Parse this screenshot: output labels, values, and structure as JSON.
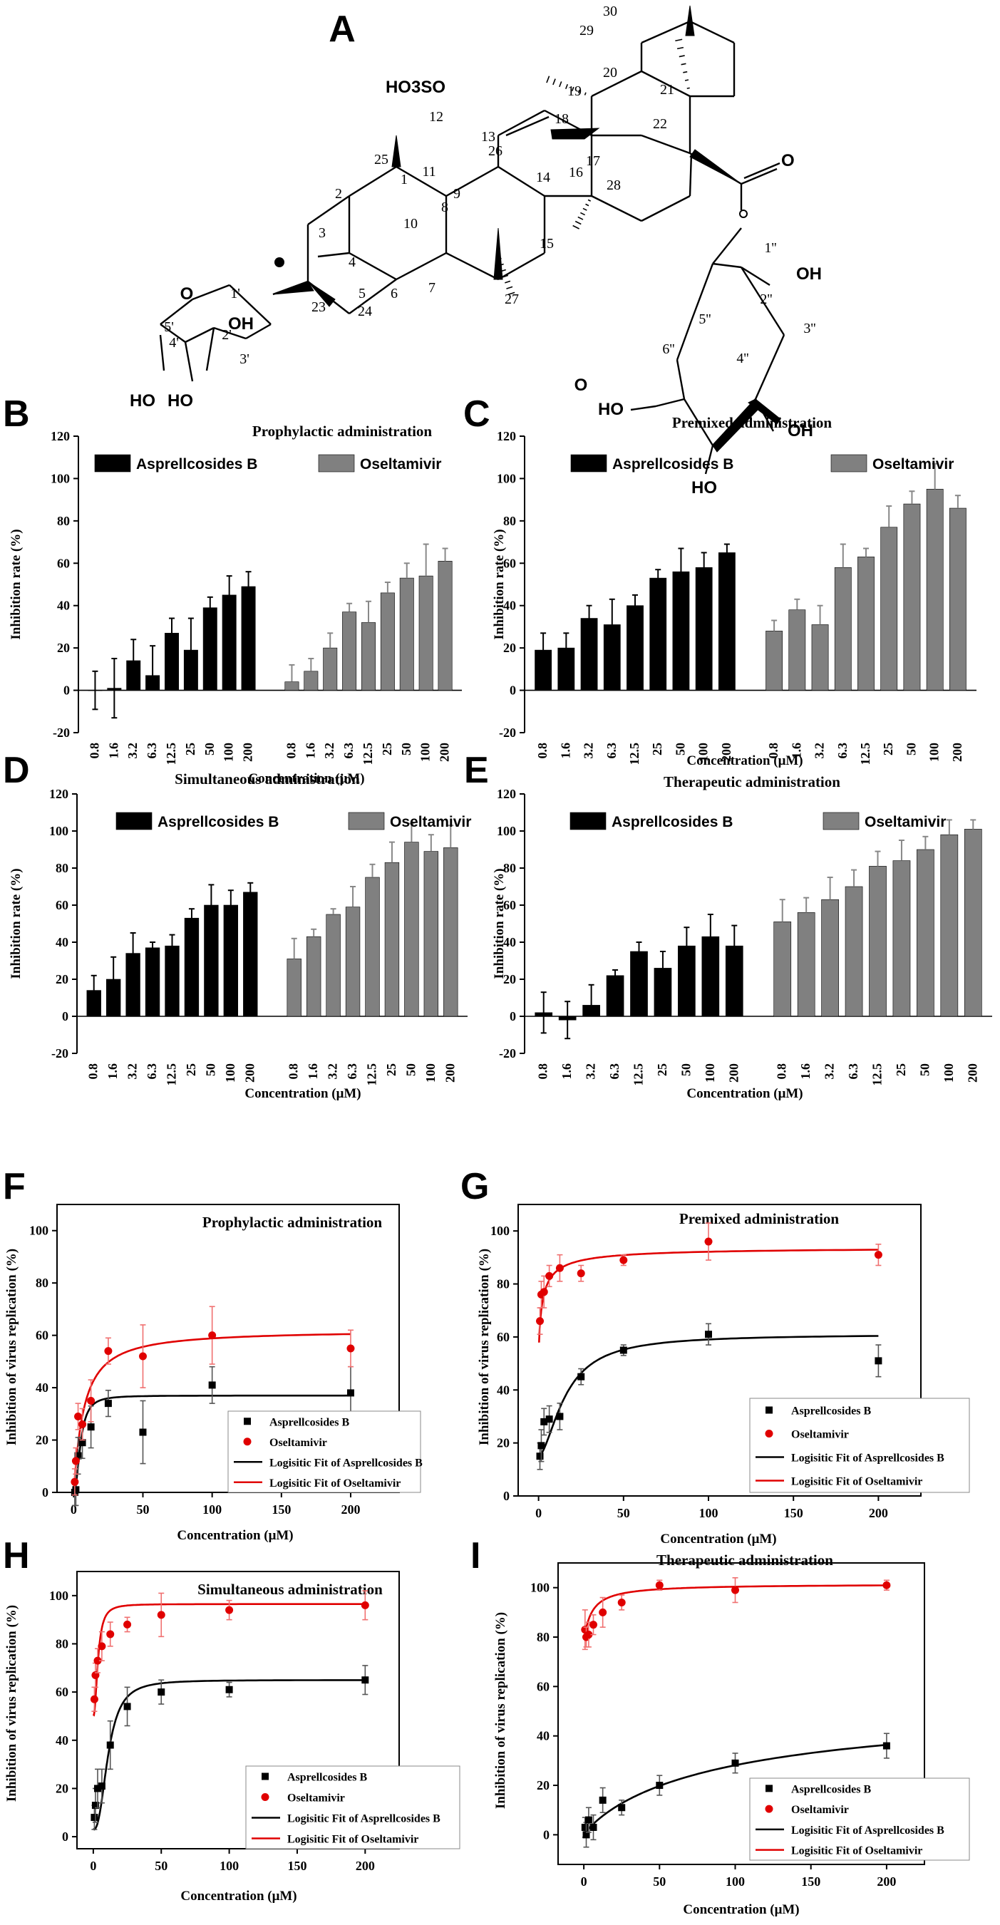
{
  "structure": {
    "panel_label": "A",
    "atoms": {
      "so3": "HO3SO",
      "oh": "OH",
      "ho": "HO",
      "o": "O"
    },
    "numbers": [
      "1",
      "2",
      "3",
      "4",
      "5",
      "6",
      "7",
      "8",
      "9",
      "10",
      "11",
      "12",
      "13",
      "14",
      "15",
      "16",
      "17",
      "18",
      "19",
      "20",
      "21",
      "22",
      "23",
      "24",
      "25",
      "26",
      "27",
      "28",
      "29",
      "30",
      "1'",
      "2'",
      "3'",
      "4'",
      "5'",
      "1''",
      "2''",
      "3''",
      "4''",
      "5''",
      "6''"
    ]
  },
  "chart_data": [
    {
      "id": "B",
      "type": "bar",
      "panel_label": "B",
      "title": "Prophylactic administration",
      "xlabel": "Concentration (μM)",
      "ylabel": "Inhibition rate (%)",
      "ylim": [
        -20,
        120
      ],
      "yticks": [
        -20,
        0,
        20,
        40,
        60,
        80,
        100,
        120
      ],
      "categories": [
        "0.8",
        "1.6",
        "3.2",
        "6.3",
        "12.5",
        "25",
        "50",
        "100",
        "200"
      ],
      "series": [
        {
          "name": "Asprellcosides B",
          "color": "#000000",
          "values": [
            0,
            1,
            14,
            7,
            27,
            19,
            39,
            45,
            49
          ],
          "errors": [
            9,
            14,
            10,
            14,
            7,
            15,
            5,
            9,
            7
          ]
        },
        {
          "name": "Oseltamivir",
          "color": "#808080",
          "values": [
            4,
            9,
            20,
            37,
            32,
            46,
            53,
            54,
            61
          ],
          "errors": [
            8,
            6,
            7,
            4,
            10,
            5,
            7,
            15,
            6
          ]
        }
      ]
    },
    {
      "id": "C",
      "type": "bar",
      "panel_label": "C",
      "title": "Premixed administration",
      "xlabel": "Concentration (μM)",
      "ylabel": "Inhibition rate (%)",
      "ylim": [
        -20,
        120
      ],
      "yticks": [
        -20,
        0,
        20,
        40,
        60,
        80,
        100,
        120
      ],
      "categories": [
        "0.8",
        "1.6",
        "3.2",
        "6.3",
        "12.5",
        "25",
        "50",
        "100",
        "200"
      ],
      "series": [
        {
          "name": "Asprellcosides B",
          "color": "#000000",
          "values": [
            19,
            20,
            34,
            31,
            40,
            53,
            56,
            58,
            65
          ],
          "errors": [
            8,
            7,
            6,
            12,
            5,
            4,
            11,
            7,
            4
          ]
        },
        {
          "name": "Oseltamivir",
          "color": "#808080",
          "values": [
            28,
            38,
            31,
            58,
            63,
            77,
            88,
            95,
            86
          ],
          "errors": [
            5,
            5,
            9,
            11,
            4,
            10,
            6,
            12,
            6
          ]
        }
      ]
    },
    {
      "id": "D",
      "type": "bar",
      "panel_label": "D",
      "title": "Simultaneous administration",
      "xlabel": "Concentration (μM)",
      "ylabel": "Inhibition rate (%)",
      "ylim": [
        -20,
        120
      ],
      "yticks": [
        -20,
        0,
        20,
        40,
        60,
        80,
        100,
        120
      ],
      "categories": [
        "0.8",
        "1.6",
        "3.2",
        "6.3",
        "12.5",
        "25",
        "50",
        "100",
        "200"
      ],
      "series": [
        {
          "name": "Asprellcosides B",
          "color": "#000000",
          "values": [
            14,
            20,
            34,
            37,
            38,
            53,
            60,
            60,
            67
          ],
          "errors": [
            8,
            12,
            11,
            3,
            6,
            5,
            11,
            8,
            5
          ]
        },
        {
          "name": "Oseltamivir",
          "color": "#808080",
          "values": [
            31,
            43,
            55,
            59,
            75,
            83,
            94,
            89,
            91
          ],
          "errors": [
            11,
            4,
            3,
            11,
            7,
            11,
            10,
            9,
            12
          ]
        }
      ]
    },
    {
      "id": "E",
      "type": "bar",
      "panel_label": "E",
      "title": "Therapeutic administration",
      "xlabel": "Concentration (μM)",
      "ylabel": "Inhibition rate (%)",
      "ylim": [
        -20,
        120
      ],
      "yticks": [
        -20,
        0,
        20,
        40,
        60,
        80,
        100,
        120
      ],
      "categories": [
        "0.8",
        "1.6",
        "3.2",
        "6.3",
        "12.5",
        "25",
        "50",
        "100",
        "200"
      ],
      "series": [
        {
          "name": "Asprellcosides B",
          "color": "#000000",
          "values": [
            2,
            -2,
            6,
            22,
            35,
            26,
            38,
            43,
            38
          ],
          "errors": [
            11,
            10,
            11,
            3,
            5,
            9,
            10,
            12,
            11
          ]
        },
        {
          "name": "Oseltamivir",
          "color": "#808080",
          "values": [
            51,
            56,
            63,
            70,
            81,
            84,
            90,
            98,
            101
          ],
          "errors": [
            12,
            8,
            12,
            9,
            8,
            11,
            7,
            8,
            5
          ]
        }
      ]
    },
    {
      "id": "F",
      "type": "scatter",
      "panel_label": "F",
      "title": "Prophylactic administration",
      "xlabel": "Concentration (μM)",
      "ylabel": "Inhibition of virus replication (%)",
      "xlim": [
        -12,
        235
      ],
      "ylim": [
        0,
        110
      ],
      "xticks": [
        0,
        50,
        100,
        150,
        200
      ],
      "yticks": [
        0,
        20,
        40,
        60,
        80,
        100
      ],
      "legend": [
        "Asprellcosides B",
        "Oseltamivir",
        "Logisitic Fit of Asprellcosides B",
        "Logisitic Fit of Oseltamivir"
      ],
      "series": [
        {
          "name": "Asprellcosides B",
          "color": "#000000",
          "marker": "square",
          "x": [
            0.8,
            1.6,
            3.2,
            6.3,
            12.5,
            25,
            50,
            100,
            200
          ],
          "y": [
            0,
            1,
            14,
            19,
            25,
            34,
            23,
            41,
            38
          ],
          "errors": [
            5,
            6,
            7,
            6,
            8,
            5,
            12,
            7,
            10
          ],
          "fit": {
            "a1": 0,
            "a2": 37,
            "x0": 5,
            "p": 2.2
          }
        },
        {
          "name": "Oseltamivir",
          "color": "#e00000",
          "marker": "circle",
          "x": [
            0.8,
            1.6,
            3.2,
            6.3,
            12.5,
            25,
            50,
            100,
            200
          ],
          "y": [
            4,
            12,
            29,
            26,
            35,
            54,
            52,
            60,
            55
          ],
          "errors": [
            5,
            5,
            5,
            6,
            8,
            5,
            12,
            11,
            7
          ],
          "fit": {
            "a1": 0,
            "a2": 62,
            "x0": 7,
            "p": 1.1
          }
        }
      ]
    },
    {
      "id": "G",
      "type": "scatter",
      "panel_label": "G",
      "title": "Premixed administration",
      "xlabel": "Concentration (μM)",
      "ylabel": "Inhibition of virus replication (%)",
      "xlim": [
        -12,
        225
      ],
      "ylim": [
        0,
        110
      ],
      "xticks": [
        0,
        50,
        100,
        150,
        200
      ],
      "yticks": [
        0,
        20,
        40,
        60,
        80,
        100
      ],
      "legend": [
        "Asprellcosides B",
        "Oseltamivir",
        "Logisitic Fit of Asprellcosides B",
        "Logisitic Fit of Oseltamivir"
      ],
      "series": [
        {
          "name": "Asprellcosides B",
          "color": "#000000",
          "marker": "square",
          "x": [
            0.8,
            1.6,
            3.2,
            6.3,
            12.5,
            25,
            50,
            100,
            200
          ],
          "y": [
            15,
            19,
            28,
            29,
            30,
            45,
            55,
            61,
            51
          ],
          "errors": [
            5,
            6,
            5,
            5,
            5,
            3,
            2,
            4,
            6
          ],
          "fit": {
            "a1": 15,
            "a2": 61,
            "x0": 16,
            "p": 1.7
          }
        },
        {
          "name": "Oseltamivir",
          "color": "#e00000",
          "marker": "circle",
          "x": [
            0.8,
            1.6,
            3.2,
            6.3,
            12.5,
            25,
            50,
            100,
            200
          ],
          "y": [
            66,
            76,
            77,
            83,
            86,
            84,
            89,
            96,
            91
          ],
          "errors": [
            5,
            5,
            6,
            4,
            5,
            3,
            2,
            7,
            4
          ],
          "fit": {
            "a1": 50,
            "a2": 94,
            "x0": 2,
            "p": 0.8
          }
        }
      ]
    },
    {
      "id": "H",
      "type": "scatter",
      "panel_label": "H",
      "title": "Simultaneous administration",
      "xlabel": "Concentration (μM)",
      "ylabel": "Inhibition of virus replication (%)",
      "xlim": [
        -12,
        225
      ],
      "ylim": [
        -5,
        110
      ],
      "xticks": [
        0,
        50,
        100,
        150,
        200
      ],
      "yticks": [
        0,
        20,
        40,
        60,
        80,
        100
      ],
      "legend": [
        "Asprellcosides B",
        "Oseltamivir",
        "Logisitic Fit of Asprellcosides B",
        "Logisitic Fit of Oseltamivir"
      ],
      "series": [
        {
          "name": "Asprellcosides B",
          "color": "#000000",
          "marker": "square",
          "x": [
            0.8,
            1.6,
            3.2,
            6.3,
            12.5,
            25,
            50,
            100,
            200
          ],
          "y": [
            8,
            13,
            20,
            21,
            38,
            54,
            60,
            61,
            65
          ],
          "errors": [
            5,
            7,
            8,
            7,
            10,
            8,
            5,
            3,
            6
          ],
          "fit": {
            "a1": 3,
            "a2": 65,
            "x0": 11,
            "p": 2.5
          }
        },
        {
          "name": "Oseltamivir",
          "color": "#e00000",
          "marker": "circle",
          "x": [
            0.8,
            1.6,
            3.2,
            6.3,
            12.5,
            25,
            50,
            100,
            200
          ],
          "y": [
            57,
            67,
            73,
            79,
            84,
            88,
            92,
            94,
            96
          ],
          "errors": [
            5,
            5,
            5,
            6,
            5,
            3,
            9,
            4,
            6
          ],
          "fit": {
            "a1": 50,
            "a2": 96.5,
            "x0": 3.5,
            "p": 2.2
          }
        }
      ]
    },
    {
      "id": "I",
      "type": "scatter",
      "panel_label": "I",
      "title": "Therapeutic administration",
      "xlabel": "Concentration (μM)",
      "ylabel": "Inhibition of virus replication (%)",
      "xlim": [
        -17,
        225
      ],
      "ylim": [
        -12,
        110
      ],
      "xticks": [
        0,
        50,
        100,
        150,
        200
      ],
      "yticks": [
        0,
        20,
        40,
        60,
        80,
        100
      ],
      "legend": [
        "Asprellcosides B",
        "Oseltamivir",
        "Logisitic Fit of Asprellcosides B",
        "Logisitic Fit of Oseltamivir"
      ],
      "series": [
        {
          "name": "Asprellcosides B",
          "color": "#000000",
          "marker": "square",
          "x": [
            0.8,
            1.6,
            3.2,
            6.3,
            12.5,
            25,
            50,
            100,
            200
          ],
          "y": [
            3,
            0,
            6,
            3,
            14,
            11,
            20,
            29,
            36
          ],
          "errors": [
            4,
            5,
            5,
            5,
            5,
            3,
            4,
            4,
            5
          ],
          "fit": {
            "a1": 0,
            "a2": 55,
            "x0": 95,
            "p": 0.9
          }
        },
        {
          "name": "Oseltamivir",
          "color": "#e00000",
          "marker": "circle",
          "x": [
            0.8,
            1.6,
            3.2,
            6.3,
            12.5,
            25,
            50,
            100,
            200
          ],
          "y": [
            83,
            80,
            81,
            85,
            90,
            94,
            101,
            99,
            101
          ],
          "errors": [
            8,
            4,
            5,
            4,
            6,
            3,
            2,
            5,
            2
          ],
          "fit": {
            "a1": 78,
            "a2": 101.5,
            "x0": 5,
            "p": 1
          }
        }
      ]
    }
  ]
}
